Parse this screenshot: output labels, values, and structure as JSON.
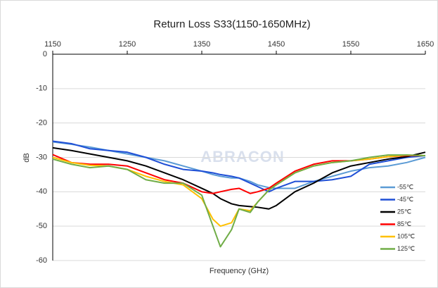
{
  "chart_data": {
    "type": "line",
    "title": "Return Loss S33(1150-1650MHz)",
    "x_label": "Frequency (GHz)",
    "y_label": "dB",
    "watermark": "ABRACON",
    "x": [
      1150,
      1175,
      1200,
      1225,
      1250,
      1275,
      1300,
      1325,
      1350,
      1365,
      1375,
      1390,
      1400,
      1415,
      1425,
      1440,
      1450,
      1475,
      1500,
      1525,
      1550,
      1575,
      1600,
      1625,
      1650
    ],
    "xlim": [
      1150,
      1650
    ],
    "xticks": [
      1150,
      1250,
      1350,
      1450,
      1550,
      1650
    ],
    "ylim": [
      -60,
      0
    ],
    "yticks": [
      0,
      -10,
      -20,
      -30,
      -40,
      -50,
      -60
    ],
    "grid": true,
    "legend": "right",
    "series": [
      {
        "name": "-55℃",
        "color": "#5b9bd5",
        "values": [
          -25.5,
          -26.2,
          -27,
          -28,
          -29,
          -30,
          -31,
          -32.5,
          -34,
          -35,
          -35.5,
          -36,
          -36,
          -37,
          -38,
          -38.8,
          -39,
          -39,
          -37,
          -35.5,
          -34,
          -33,
          -32.5,
          -31.5,
          -30
        ]
      },
      {
        "name": "-45℃",
        "color": "#1f4fd6",
        "values": [
          -25.3,
          -26,
          -27.5,
          -28,
          -28.5,
          -30,
          -32,
          -33.5,
          -34,
          -34.5,
          -35,
          -35.5,
          -36,
          -37.5,
          -38.5,
          -40,
          -39,
          -37,
          -37,
          -36.5,
          -35.5,
          -32,
          -31,
          -30,
          -29.5
        ]
      },
      {
        "name": "25℃",
        "color": "#000000",
        "values": [
          -27.2,
          -28,
          -29,
          -30,
          -31,
          -32.5,
          -34.5,
          -36.5,
          -39,
          -40.5,
          -42,
          -43.5,
          -44,
          -44.3,
          -44.5,
          -45,
          -44,
          -40,
          -37.5,
          -34.5,
          -32.5,
          -31.5,
          -30.5,
          -29.8,
          -28.5
        ]
      },
      {
        "name": "85℃",
        "color": "#ff0000",
        "values": [
          -29.2,
          -31.5,
          -32,
          -32,
          -32.5,
          -34.5,
          -36.5,
          -37.5,
          -40,
          -40.5,
          -40,
          -39.3,
          -39,
          -40.5,
          -40,
          -39,
          -37.5,
          -34,
          -32,
          -31,
          -31,
          -30.5,
          -29.8,
          -29.5,
          -29.5
        ]
      },
      {
        "name": "105℃",
        "color": "#ffc000",
        "values": [
          -30,
          -31.5,
          -32.3,
          -32.5,
          -33.5,
          -35.5,
          -37,
          -38,
          -42,
          -48,
          -50,
          -49,
          -45,
          -45.5,
          -43,
          -39.5,
          -38,
          -34.5,
          -32.5,
          -31.5,
          -31,
          -30.5,
          -29.8,
          -29.3,
          -29.5
        ]
      },
      {
        "name": "125℃",
        "color": "#70ad47",
        "values": [
          -30.5,
          -32,
          -33,
          -32.5,
          -33.5,
          -36.5,
          -37.5,
          -37.5,
          -41,
          -50,
          -56,
          -51,
          -45,
          -46,
          -43,
          -39.5,
          -38,
          -34.5,
          -32.5,
          -31.5,
          -31,
          -30,
          -29.3,
          -29.3,
          -29.5
        ]
      }
    ]
  }
}
